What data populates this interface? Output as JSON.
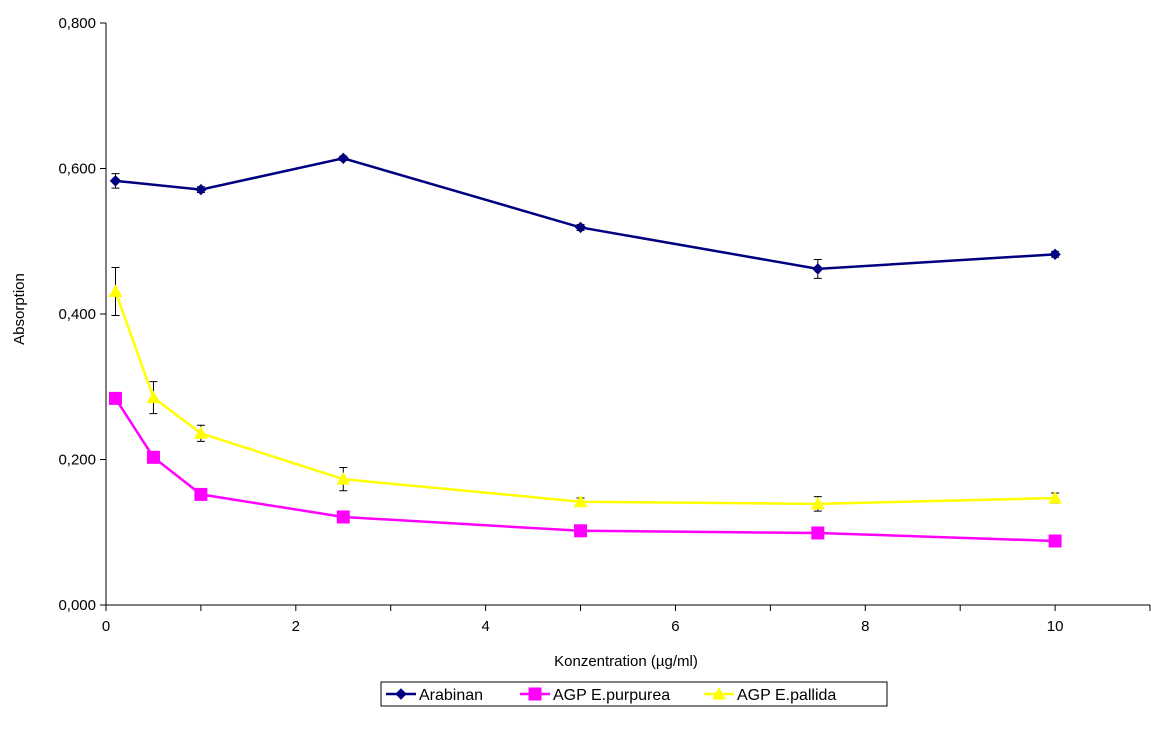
{
  "chart_data": {
    "type": "line",
    "title": "",
    "xlabel": "Konzentration (µg/ml)",
    "ylabel": "Absorption",
    "xlim": [
      0,
      11
    ],
    "ylim": [
      0,
      0.8
    ],
    "x_ticks": [
      0,
      2,
      4,
      6,
      8,
      10
    ],
    "x_tick_labels": [
      "0",
      "2",
      "4",
      "6",
      "8",
      "10"
    ],
    "y_ticks": [
      0,
      0.2,
      0.4,
      0.6,
      0.8
    ],
    "y_tick_labels": [
      "0,000",
      "0,200",
      "0,400",
      "0,600",
      "0,800"
    ],
    "grid": false,
    "legend_position": "bottom",
    "series": [
      {
        "name": "Arabinan",
        "color": "#000080",
        "marker": "diamond",
        "x": [
          0.1,
          1,
          2.5,
          5,
          7.5,
          10
        ],
        "y": [
          0.583,
          0.571,
          0.614,
          0.519,
          0.462,
          0.482
        ],
        "err": [
          0.01,
          0.004,
          0.003,
          0.004,
          0.013,
          0.004
        ]
      },
      {
        "name": "AGP E.purpurea",
        "color": "#ff00ff",
        "marker": "square",
        "x": [
          0.1,
          0.5,
          1,
          2.5,
          5,
          7.5,
          10
        ],
        "y": [
          0.284,
          0.203,
          0.152,
          0.121,
          0.102,
          0.099,
          0.088
        ],
        "err": [
          0.005,
          0.003,
          0.003,
          0.003,
          0.003,
          0.003,
          0.003
        ]
      },
      {
        "name": "AGP E.pallida",
        "color": "#ffff00",
        "marker": "triangle",
        "x": [
          0.1,
          0.5,
          1,
          2.5,
          5,
          7.5,
          10
        ],
        "y": [
          0.431,
          0.285,
          0.236,
          0.173,
          0.142,
          0.139,
          0.147
        ],
        "err": [
          0.033,
          0.022,
          0.011,
          0.016,
          0.005,
          0.01,
          0.007
        ]
      }
    ]
  }
}
